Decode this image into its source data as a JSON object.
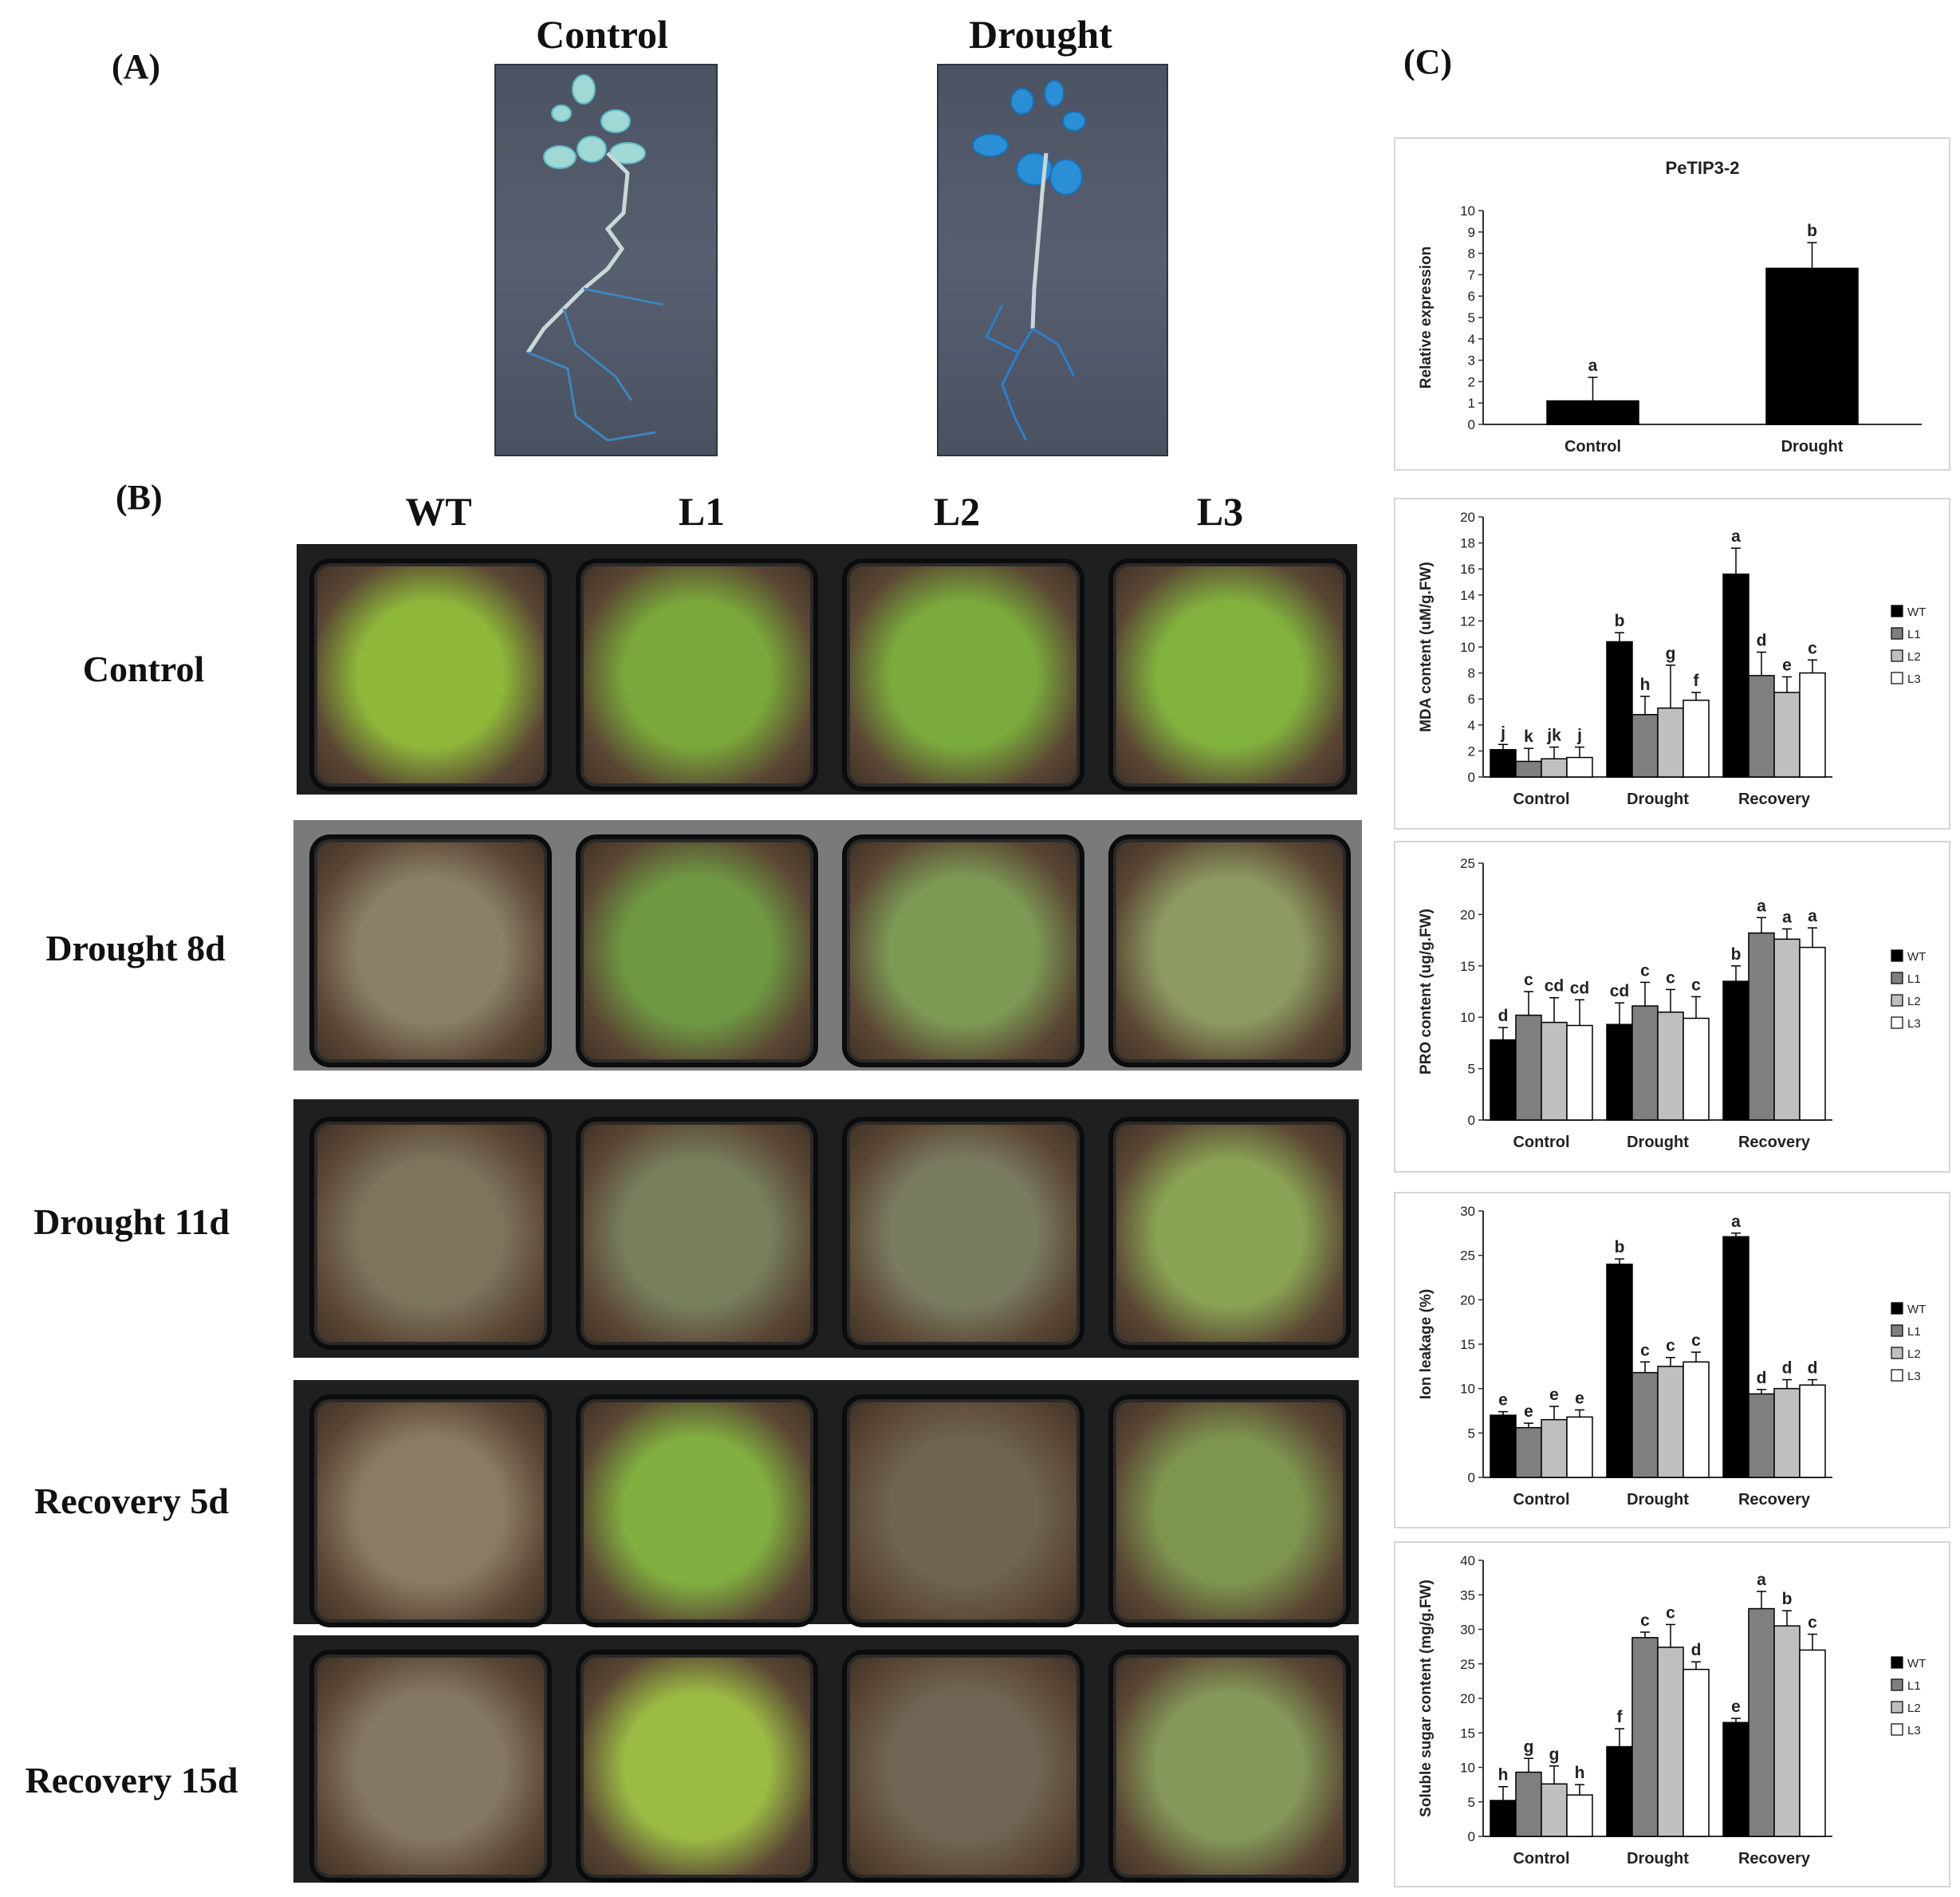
{
  "panel_a": {
    "letter": "(A)",
    "photos": [
      {
        "label": "Control"
      },
      {
        "label": "Drought"
      }
    ]
  },
  "panel_b": {
    "letter": "(B)",
    "columns": [
      "WT",
      "L1",
      "L2",
      "L3"
    ],
    "rows": [
      {
        "label": "Control",
        "pot_colors": [
          "#8fb83a",
          "#7aa83a",
          "#7bab3c",
          "#82b23e"
        ]
      },
      {
        "label": "Drought 8d",
        "pot_colors": [
          "#8a8066",
          "#6f9a43",
          "#7d9a55",
          "#8d9a62"
        ]
      },
      {
        "label": "Drought 11d",
        "pot_colors": [
          "#7d745c",
          "#78805e",
          "#7a7c60",
          "#8aa354"
        ]
      },
      {
        "label": "Recovery 5d",
        "pot_colors": [
          "#8a7c62",
          "#82b040",
          "#6e6450",
          "#7e9550"
        ]
      },
      {
        "label": "Recovery 15d",
        "pot_colors": [
          "#867866",
          "#9cbb45",
          "#716655",
          "#85995a"
        ]
      }
    ]
  },
  "panel_c": {
    "letter": "(C)"
  },
  "colors": {
    "WT": "#000000",
    "L1": "#7f7f7f",
    "L2": "#bfbfbf",
    "L3": "#ffffff",
    "gus_blue": "#2a8fd6",
    "leaf_green": "#8cbf3f"
  },
  "chart_data": [
    {
      "type": "bar",
      "title": "PeTIP3-2",
      "ylabel": "Relative expression",
      "categories": [
        "Control",
        "Drought"
      ],
      "ylim": [
        0,
        10
      ],
      "yticks": [
        0,
        1,
        2,
        3,
        4,
        5,
        6,
        7,
        8,
        9,
        10
      ],
      "series": [
        {
          "values": [
            1.1,
            7.3
          ],
          "errors": [
            1.1,
            1.2
          ],
          "letters": [
            "a",
            "b"
          ]
        }
      ]
    },
    {
      "type": "bar",
      "ylabel": "MDA content (uM/g.FW)",
      "categories": [
        "Control",
        "Drought",
        "Recovery"
      ],
      "ylim": [
        0,
        20
      ],
      "yticks": [
        0,
        2,
        4,
        6,
        8,
        10,
        12,
        14,
        16,
        18,
        20
      ],
      "legend": [
        "WT",
        "L1",
        "L2",
        "L3"
      ],
      "series": [
        {
          "name": "WT",
          "values": [
            2.1,
            10.4,
            15.6
          ],
          "errors": [
            0.4,
            0.7,
            2.0
          ],
          "letters": [
            "j",
            "b",
            "a"
          ]
        },
        {
          "name": "L1",
          "values": [
            1.2,
            4.8,
            7.8
          ],
          "errors": [
            1.0,
            1.4,
            1.8
          ],
          "letters": [
            "k",
            "h",
            "d"
          ]
        },
        {
          "name": "L2",
          "values": [
            1.4,
            5.3,
            6.5
          ],
          "errors": [
            0.9,
            3.3,
            1.2
          ],
          "letters": [
            "jk",
            "g",
            "e"
          ]
        },
        {
          "name": "L3",
          "values": [
            1.5,
            5.9,
            8.0
          ],
          "errors": [
            0.8,
            0.6,
            1.0
          ],
          "letters": [
            "j",
            "f",
            "c"
          ]
        }
      ]
    },
    {
      "type": "bar",
      "ylabel": "PRO content (ug/g.FW)",
      "categories": [
        "Control",
        "Drought",
        "Recovery"
      ],
      "ylim": [
        0,
        25
      ],
      "yticks": [
        0,
        5,
        10,
        15,
        20,
        25
      ],
      "legend": [
        "WT",
        "L1",
        "L2",
        "L3"
      ],
      "series": [
        {
          "name": "WT",
          "values": [
            7.8,
            9.3,
            13.5
          ],
          "errors": [
            1.2,
            2.1,
            1.5
          ],
          "letters": [
            "d",
            "cd",
            "b"
          ]
        },
        {
          "name": "L1",
          "values": [
            10.2,
            11.1,
            18.2
          ],
          "errors": [
            2.3,
            2.3,
            1.5
          ],
          "letters": [
            "c",
            "c",
            "a"
          ]
        },
        {
          "name": "L2",
          "values": [
            9.5,
            10.5,
            17.6
          ],
          "errors": [
            2.4,
            2.2,
            1.0
          ],
          "letters": [
            "cd",
            "c",
            "a"
          ]
        },
        {
          "name": "L3",
          "values": [
            9.2,
            9.9,
            16.8
          ],
          "errors": [
            2.5,
            2.1,
            1.9
          ],
          "letters": [
            "cd",
            "c",
            "a"
          ]
        }
      ]
    },
    {
      "type": "bar",
      "ylabel": "Ion leakage (%)",
      "categories": [
        "Control",
        "Drought",
        "Recovery"
      ],
      "ylim": [
        0,
        30
      ],
      "yticks": [
        0,
        5,
        10,
        15,
        20,
        25,
        30
      ],
      "legend": [
        "WT",
        "L1",
        "L2",
        "L3"
      ],
      "series": [
        {
          "name": "WT",
          "values": [
            7.0,
            24.0,
            27.1
          ],
          "errors": [
            0.4,
            0.6,
            0.4
          ],
          "letters": [
            "e",
            "b",
            "a"
          ]
        },
        {
          "name": "L1",
          "values": [
            5.6,
            11.8,
            9.4
          ],
          "errors": [
            0.5,
            1.2,
            0.5
          ],
          "letters": [
            "e",
            "c",
            "d"
          ]
        },
        {
          "name": "L2",
          "values": [
            6.5,
            12.5,
            10.0
          ],
          "errors": [
            1.5,
            1.0,
            1.0
          ],
          "letters": [
            "e",
            "c",
            "d"
          ]
        },
        {
          "name": "L3",
          "values": [
            6.8,
            13.0,
            10.4
          ],
          "errors": [
            0.8,
            1.1,
            0.6
          ],
          "letters": [
            "e",
            "c",
            "d"
          ]
        }
      ]
    },
    {
      "type": "bar",
      "ylabel": "Soluble sugar content (mg/g.FW)",
      "categories": [
        "Control",
        "Drought",
        "Recovery"
      ],
      "ylim": [
        0,
        40
      ],
      "yticks": [
        0,
        5,
        10,
        15,
        20,
        25,
        30,
        35,
        40
      ],
      "legend": [
        "WT",
        "L1",
        "L2",
        "L3"
      ],
      "series": [
        {
          "name": "WT",
          "values": [
            5.2,
            13.0,
            16.5
          ],
          "errors": [
            2.0,
            2.6,
            0.6
          ],
          "letters": [
            "h",
            "f",
            "e"
          ]
        },
        {
          "name": "L1",
          "values": [
            9.3,
            28.8,
            33.0
          ],
          "errors": [
            2.0,
            0.8,
            2.5
          ],
          "letters": [
            "g",
            "c",
            "a"
          ]
        },
        {
          "name": "L2",
          "values": [
            7.6,
            27.4,
            30.5
          ],
          "errors": [
            2.6,
            3.3,
            2.2
          ],
          "letters": [
            "g",
            "c",
            "b"
          ]
        },
        {
          "name": "L3",
          "values": [
            6.0,
            24.2,
            27.0
          ],
          "errors": [
            1.5,
            1.1,
            2.3
          ],
          "letters": [
            "h",
            "d",
            "c"
          ]
        }
      ]
    }
  ]
}
